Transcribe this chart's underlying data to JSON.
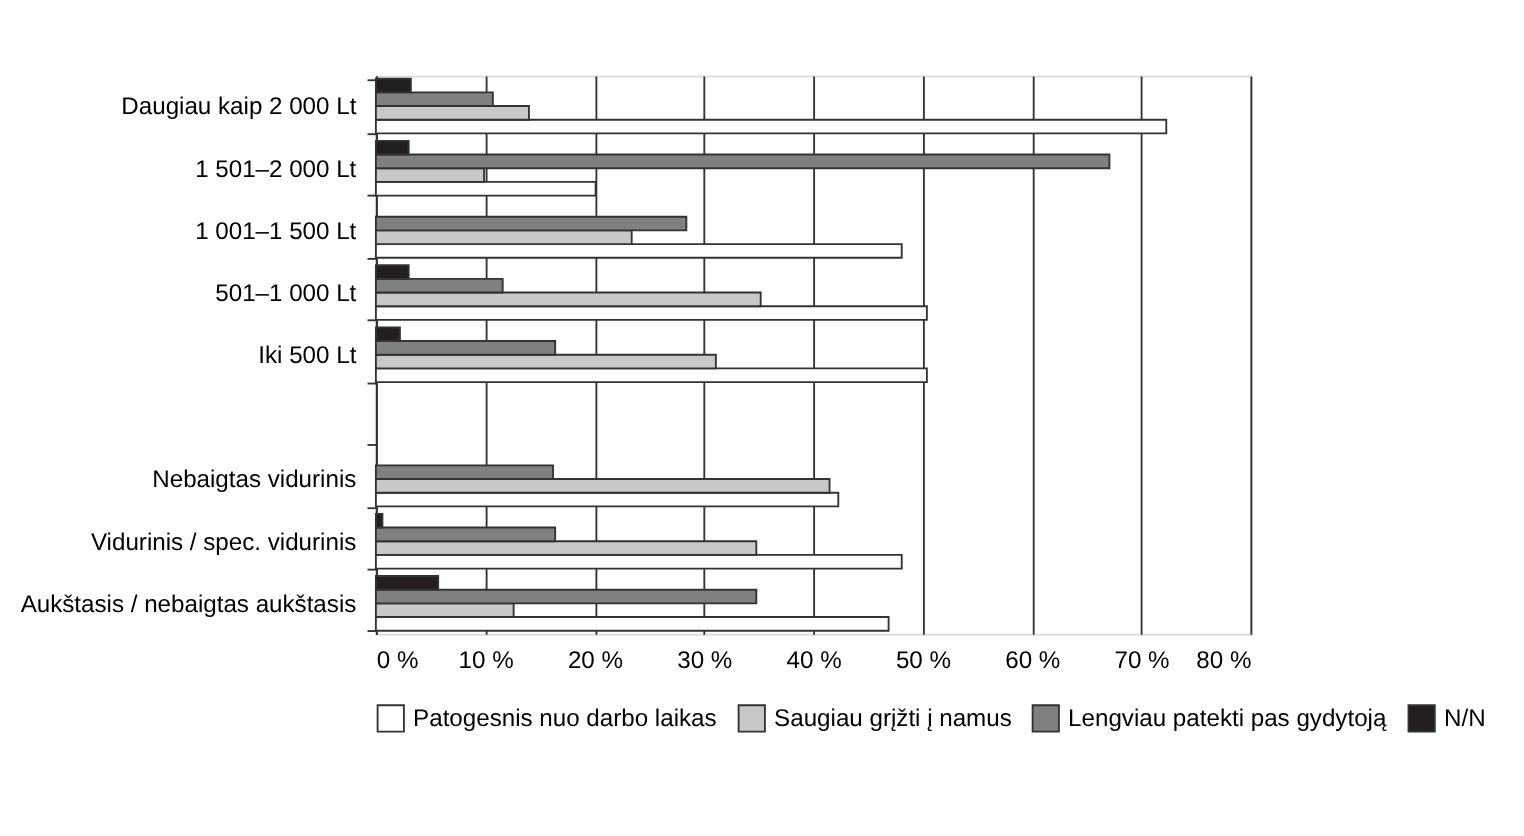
{
  "chart_data": {
    "type": "bar",
    "orientation": "horizontal",
    "categories": [
      "Daugiau kaip 2 000 Lt",
      "1 501–2 000 Lt",
      "1 001–1 500 Lt",
      "501–1 000 Lt",
      "Iki 500 Lt",
      null,
      "Nebaigtas vidurinis",
      "Vidurinis / spec. vidurinis",
      "Aukštasis / nebaigtas aukštasis"
    ],
    "series": [
      {
        "name": "Patogesnis nuo darbo laikas",
        "color": "#ffffff",
        "values": [
          72.3,
          20.1,
          48.1,
          50.4,
          50.4,
          null,
          42.3,
          48.1,
          46.9
        ]
      },
      {
        "name": "Saugiau grįžti į namus",
        "color": "#c8c8c8",
        "values": [
          14.0,
          9.9,
          23.4,
          35.2,
          31.1,
          null,
          41.5,
          34.8,
          12.6
        ]
      },
      {
        "name": "Lengviau patekti pas gydytoją",
        "color": "#808080",
        "values": [
          10.7,
          67.1,
          28.4,
          11.6,
          16.4,
          null,
          16.2,
          16.4,
          34.8
        ]
      },
      {
        "name": "N/N",
        "color": "#231f20",
        "values": [
          3.2,
          3.0,
          null,
          3.0,
          2.2,
          null,
          null,
          0.6,
          5.7
        ]
      }
    ],
    "xlim": [
      0,
      80
    ],
    "xticks": [
      {
        "value": 0,
        "label": "0 %"
      },
      {
        "value": 10,
        "label": "10 %"
      },
      {
        "value": 20,
        "label": "20 %"
      },
      {
        "value": 30,
        "label": "30 %"
      },
      {
        "value": 40,
        "label": "40 %"
      },
      {
        "value": 50,
        "label": "50 %"
      },
      {
        "value": 60,
        "label": "60 %"
      },
      {
        "value": 70,
        "label": "70 %"
      },
      {
        "value": 80,
        "label": "80 %"
      }
    ],
    "grid": "x",
    "legend": "bottom"
  }
}
